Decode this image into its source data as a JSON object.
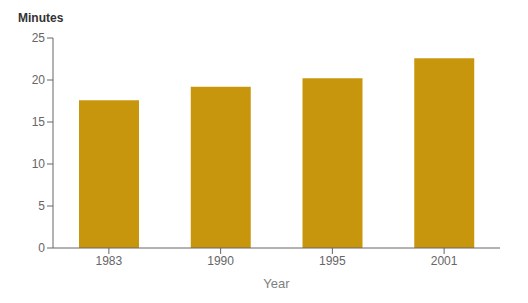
{
  "chart_data": {
    "type": "bar",
    "categories": [
      "1983",
      "1990",
      "1995",
      "2001"
    ],
    "values": [
      17.6,
      19.2,
      20.2,
      22.6
    ],
    "color": "#C8960C",
    "xlabel": "Year",
    "ylabel": "Minutes",
    "ylim": [
      0,
      25
    ],
    "yticks": [
      0,
      5,
      10,
      15,
      20,
      25
    ],
    "grid": false
  }
}
